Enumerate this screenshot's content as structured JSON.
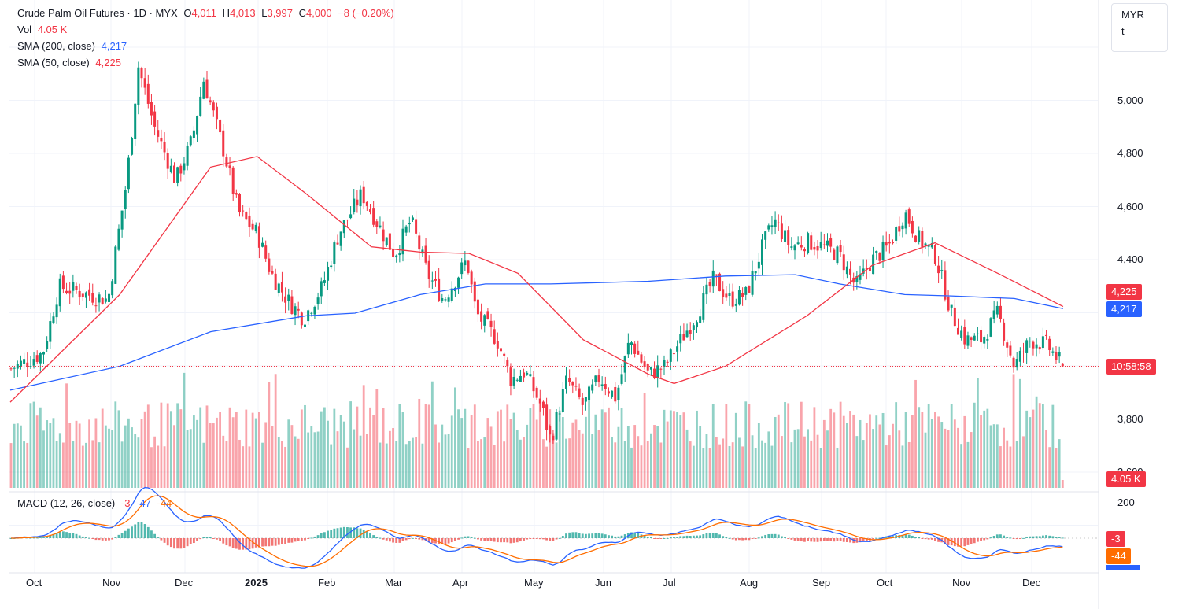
{
  "header": {
    "symbol": "Crude Palm Oil Futures · 1D · MYX",
    "o_label": "O",
    "o_value": "4,011",
    "h_label": "H",
    "h_value": "4,013",
    "l_label": "L",
    "l_value": "3,997",
    "c_label": "C",
    "c_value": "4,000",
    "change": "−8 (−0.20%)",
    "vol_label": "Vol",
    "vol_value": "4.05 K",
    "sma200_label": "SMA (200, close)",
    "sma200_value": "4,217",
    "sma50_label": "SMA (50, close)",
    "sma50_value": "4,225"
  },
  "currency_box": {
    "currency": "MYR",
    "unit": "t"
  },
  "price_axis": [
    "5,000",
    "4,800",
    "4,600",
    "4,400",
    "3,800",
    "3,600"
  ],
  "tags": {
    "sma50": "4,225",
    "sma200": "4,217",
    "countdown": "10:58:58",
    "volume": "4.05 K",
    "macd_hist": "-3",
    "macd_signal": "-44"
  },
  "macd": {
    "label": "MACD (12, 26, close)",
    "hist_value": "-3",
    "macd_value": "-47",
    "signal_value": "-44",
    "axis_top": "200"
  },
  "time_axis": [
    "Oct",
    "Nov",
    "Dec",
    "2025",
    "Feb",
    "Mar",
    "Apr",
    "May",
    "Jun",
    "Jul",
    "Aug",
    "Sep",
    "Oct",
    "Nov",
    "Dec"
  ],
  "colors": {
    "up": "#089981",
    "down": "#f23645",
    "sma200": "#2962ff",
    "sma50": "#f23645",
    "signal": "#ff6d00"
  },
  "chart_data": {
    "type": "candlestick",
    "ylim": [
      3600,
      5200
    ],
    "last_close": 4000,
    "close_path": [
      {
        "x": "Sep 19",
        "y": 3990
      },
      {
        "x": "Oct 3",
        "y": 4050
      },
      {
        "x": "Oct 10",
        "y": 4300
      },
      {
        "x": "Oct 31",
        "y": 4250
      },
      {
        "x": "Nov 8",
        "y": 4700
      },
      {
        "x": "Nov 13",
        "y": 5130
      },
      {
        "x": "Nov 20",
        "y": 4900
      },
      {
        "x": "Nov 29",
        "y": 4700
      },
      {
        "x": "Dec 6",
        "y": 4850
      },
      {
        "x": "Dec 11",
        "y": 5080
      },
      {
        "x": "Dec 20",
        "y": 4800
      },
      {
        "x": "Dec 26",
        "y": 4580
      },
      {
        "x": "Jan 3",
        "y": 4500
      },
      {
        "x": "Jan 9",
        "y": 4350
      },
      {
        "x": "Jan 16",
        "y": 4250
      },
      {
        "x": "Jan 23",
        "y": 4180
      },
      {
        "x": "Jan 31",
        "y": 4300
      },
      {
        "x": "Feb 7",
        "y": 4500
      },
      {
        "x": "Feb 17",
        "y": 4650
      },
      {
        "x": "Feb 26",
        "y": 4500
      },
      {
        "x": "Mar 3",
        "y": 4420
      },
      {
        "x": "Mar 10",
        "y": 4550
      },
      {
        "x": "Mar 17",
        "y": 4350
      },
      {
        "x": "Mar 24",
        "y": 4250
      },
      {
        "x": "Apr 3",
        "y": 4400
      },
      {
        "x": "Apr 7",
        "y": 4200
      },
      {
        "x": "Apr 16",
        "y": 4100
      },
      {
        "x": "Apr 22",
        "y": 3950
      },
      {
        "x": "Apr 28",
        "y": 3980
      },
      {
        "x": "May 5",
        "y": 3850
      },
      {
        "x": "May 9",
        "y": 3720
      },
      {
        "x": "May 16",
        "y": 3950
      },
      {
        "x": "May 23",
        "y": 3850
      },
      {
        "x": "May 30",
        "y": 3960
      },
      {
        "x": "Jun 6",
        "y": 3880
      },
      {
        "x": "Jun 12",
        "y": 4100
      },
      {
        "x": "Jun 20",
        "y": 3970
      },
      {
        "x": "Jun 27",
        "y": 4000
      },
      {
        "x": "Jul 4",
        "y": 4100
      },
      {
        "x": "Jul 11",
        "y": 4200
      },
      {
        "x": "Jul 18",
        "y": 4330
      },
      {
        "x": "Jul 25",
        "y": 4250
      },
      {
        "x": "Aug 1",
        "y": 4270
      },
      {
        "x": "Aug 8",
        "y": 4450
      },
      {
        "x": "Aug 13",
        "y": 4550
      },
      {
        "x": "Aug 20",
        "y": 4450
      },
      {
        "x": "Aug 27",
        "y": 4470
      },
      {
        "x": "Sep 3",
        "y": 4450
      },
      {
        "x": "Sep 10",
        "y": 4420
      },
      {
        "x": "Sep 17",
        "y": 4300
      },
      {
        "x": "Sep 24",
        "y": 4400
      },
      {
        "x": "Oct 1",
        "y": 4450
      },
      {
        "x": "Oct 8",
        "y": 4580
      },
      {
        "x": "Oct 14",
        "y": 4480
      },
      {
        "x": "Oct 21",
        "y": 4420
      },
      {
        "x": "Oct 28",
        "y": 4200
      },
      {
        "x": "Nov 3",
        "y": 4100
      },
      {
        "x": "Nov 10",
        "y": 4100
      },
      {
        "x": "Nov 17",
        "y": 4200
      },
      {
        "x": "Nov 24",
        "y": 4000
      },
      {
        "x": "Dec 1",
        "y": 4100
      },
      {
        "x": "Dec 8",
        "y": 4080
      },
      {
        "x": "Dec 15",
        "y": 4000
      }
    ],
    "sma50": [
      {
        "x": "Sep 19",
        "y": 3865
      },
      {
        "x": "Nov 5",
        "y": 4270
      },
      {
        "x": "Dec 14",
        "y": 4750
      },
      {
        "x": "Jan 3",
        "y": 4790
      },
      {
        "x": "Jan 24",
        "y": 4650
      },
      {
        "x": "Feb 21",
        "y": 4450
      },
      {
        "x": "Mar 14",
        "y": 4430
      },
      {
        "x": "Apr 4",
        "y": 4425
      },
      {
        "x": "Apr 25",
        "y": 4350
      },
      {
        "x": "May 23",
        "y": 4100
      },
      {
        "x": "Jun 20",
        "y": 3970
      },
      {
        "x": "Jul 1",
        "y": 3935
      },
      {
        "x": "Jul 23",
        "y": 4000
      },
      {
        "x": "Aug 27",
        "y": 4190
      },
      {
        "x": "Sep 24",
        "y": 4380
      },
      {
        "x": "Oct 21",
        "y": 4465
      },
      {
        "x": "Nov 17",
        "y": 4350
      },
      {
        "x": "Dec 15",
        "y": 4225
      }
    ],
    "sma200": [
      {
        "x": "Sep 19",
        "y": 3910
      },
      {
        "x": "Nov 5",
        "y": 4000
      },
      {
        "x": "Dec 14",
        "y": 4130
      },
      {
        "x": "Jan 24",
        "y": 4190
      },
      {
        "x": "Feb 14",
        "y": 4200
      },
      {
        "x": "Mar 14",
        "y": 4270
      },
      {
        "x": "Apr 11",
        "y": 4310
      },
      {
        "x": "May 9",
        "y": 4310
      },
      {
        "x": "Jun 20",
        "y": 4320
      },
      {
        "x": "Jul 23",
        "y": 4340
      },
      {
        "x": "Aug 22",
        "y": 4345
      },
      {
        "x": "Sep 10",
        "y": 4310
      },
      {
        "x": "Oct 8",
        "y": 4270
      },
      {
        "x": "Oct 28",
        "y": 4265
      },
      {
        "x": "Nov 24",
        "y": 4255
      },
      {
        "x": "Dec 15",
        "y": 4217
      }
    ],
    "volume_last": "4.05 K",
    "macd_series": {
      "macd_last": -47,
      "signal_last": -44,
      "hist_last": -3
    }
  }
}
